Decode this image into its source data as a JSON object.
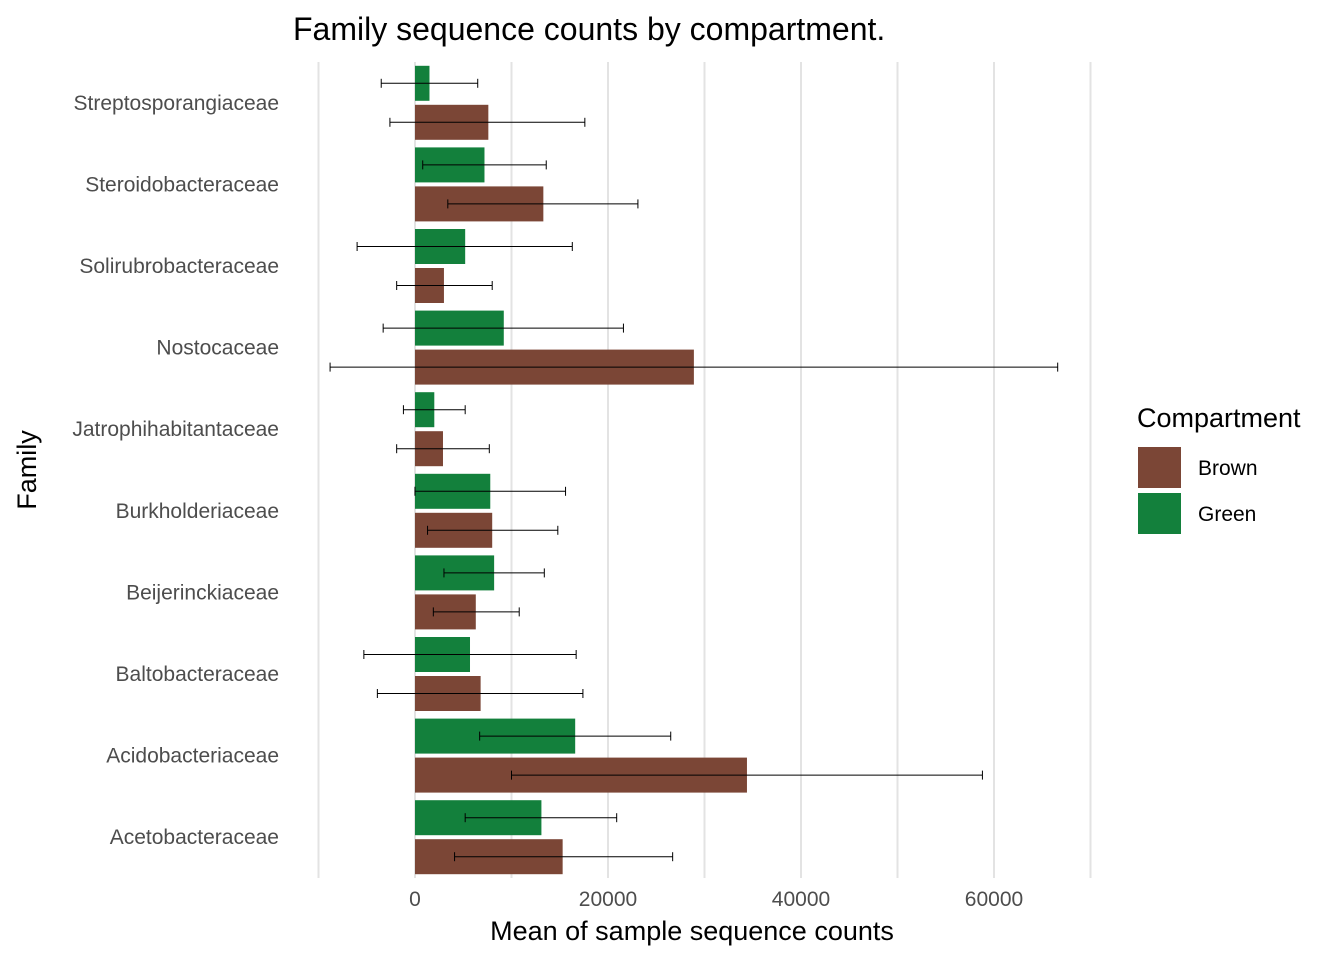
{
  "chart_data": {
    "type": "bar",
    "orientation": "horizontal",
    "title": "Family sequence counts by compartment.",
    "xlabel": "Mean of sample sequence counts",
    "ylabel": "Family",
    "xlim": [
      -10000,
      70000
    ],
    "x_ticks": [
      0,
      20000,
      40000,
      60000
    ],
    "x_tick_labels": [
      "0",
      "20000",
      "40000",
      "60000"
    ],
    "grid": true,
    "legend": {
      "title": "Compartment",
      "position": "right"
    },
    "categories": [
      "Acetobacteraceae",
      "Acidobacteriaceae",
      "Baltobacteraceae",
      "Beijerinckiaceae",
      "Burkholderiaceae",
      "Jatrophihabitantaceae",
      "Nostocaceae",
      "Solirubrobacteraceae",
      "Steroidobacteraceae",
      "Streptosporangiaceae"
    ],
    "series": [
      {
        "name": "Brown",
        "color": "#7b4636",
        "values": [
          15300,
          34400,
          6800,
          6300,
          8000,
          2900,
          28900,
          3000,
          13300,
          7600
        ],
        "err_low": [
          4100,
          10000,
          -3900,
          1900,
          1300,
          -1900,
          -8800,
          -1900,
          3400,
          -2600
        ],
        "err_high": [
          26700,
          58800,
          17400,
          10800,
          14800,
          7700,
          66600,
          8000,
          23100,
          17600
        ]
      },
      {
        "name": "Green",
        "color": "#13803c",
        "values": [
          13100,
          16600,
          5700,
          8200,
          7800,
          2000,
          9200,
          5200,
          7200,
          1500
        ],
        "err_low": [
          5200,
          6700,
          -5300,
          3000,
          0,
          -1200,
          -3300,
          -6000,
          800,
          -3500
        ],
        "err_high": [
          20900,
          26500,
          16700,
          13400,
          15600,
          5200,
          21600,
          16300,
          13600,
          6500
        ]
      }
    ]
  }
}
